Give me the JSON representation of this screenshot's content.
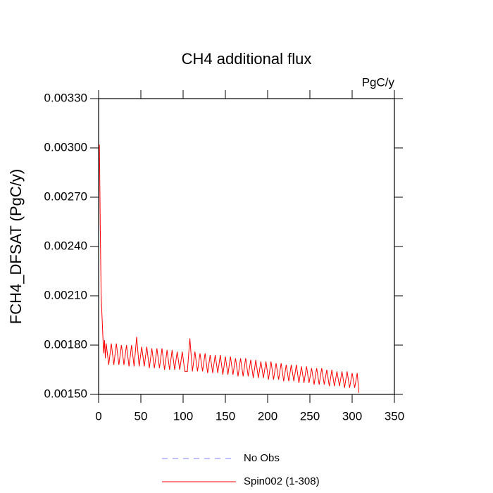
{
  "chart_data": {
    "type": "line",
    "title": "CH4 additional flux",
    "units_label": "PgC/y",
    "ylabel": "FCH4_DFSAT  (PgC/y)",
    "xlim": [
      0,
      350
    ],
    "xticks": [
      0,
      50,
      100,
      150,
      200,
      250,
      300,
      350
    ],
    "ylim": [
      0.0015,
      0.0033
    ],
    "yticks": [
      {
        "value": 0.0015,
        "label": "0.00150"
      },
      {
        "value": 0.0018,
        "label": "0.00180"
      },
      {
        "value": 0.0021,
        "label": "0.00210"
      },
      {
        "value": 0.0024,
        "label": "0.00240"
      },
      {
        "value": 0.0027,
        "label": "0.00270"
      },
      {
        "value": 0.003,
        "label": "0.00300"
      },
      {
        "value": 0.0033,
        "label": "0.00330"
      }
    ],
    "legend_only": [
      {
        "name": "No Obs",
        "color": "#8080ff",
        "dash": true
      }
    ],
    "x": [
      1,
      2,
      3,
      4,
      5,
      6,
      7,
      8,
      9,
      12,
      15,
      18,
      21,
      24,
      27,
      30,
      33,
      36,
      39,
      42,
      45,
      48,
      51,
      54,
      57,
      60,
      63,
      66,
      69,
      72,
      75,
      78,
      81,
      84,
      87,
      90,
      93,
      96,
      99,
      102,
      105,
      108,
      111,
      114,
      117,
      120,
      123,
      126,
      129,
      132,
      135,
      138,
      141,
      144,
      147,
      150,
      153,
      156,
      159,
      162,
      165,
      168,
      171,
      174,
      177,
      180,
      183,
      186,
      189,
      192,
      195,
      198,
      201,
      204,
      207,
      210,
      213,
      216,
      219,
      222,
      225,
      228,
      231,
      234,
      237,
      240,
      243,
      246,
      249,
      252,
      255,
      258,
      261,
      264,
      267,
      270,
      273,
      276,
      279,
      282,
      285,
      288,
      291,
      294,
      297,
      300,
      303,
      306,
      308
    ],
    "series": [
      {
        "name": "Spin002 (1-308)",
        "color": "#ff0000",
        "values": [
          0.00302,
          0.0025,
          0.00211,
          0.00198,
          0.00186,
          0.00175,
          0.00183,
          0.00172,
          0.00181,
          0.00168,
          0.00181,
          0.00168,
          0.00181,
          0.00168,
          0.0018,
          0.00168,
          0.0018,
          0.00167,
          0.0018,
          0.00167,
          0.00185,
          0.00167,
          0.00179,
          0.00167,
          0.00179,
          0.00166,
          0.00178,
          0.00166,
          0.00178,
          0.00166,
          0.00178,
          0.00165,
          0.00177,
          0.00165,
          0.00177,
          0.00165,
          0.00176,
          0.00165,
          0.00176,
          0.00164,
          0.00164,
          0.00184,
          0.00164,
          0.00176,
          0.00164,
          0.00175,
          0.00164,
          0.00175,
          0.00163,
          0.00174,
          0.00163,
          0.00174,
          0.00163,
          0.00174,
          0.00162,
          0.00173,
          0.00162,
          0.00173,
          0.00162,
          0.00172,
          0.00161,
          0.00172,
          0.00161,
          0.00172,
          0.00161,
          0.00171,
          0.0016,
          0.00171,
          0.0016,
          0.0017,
          0.0016,
          0.0017,
          0.00159,
          0.0017,
          0.00159,
          0.00169,
          0.00159,
          0.00169,
          0.00158,
          0.00168,
          0.00158,
          0.00168,
          0.00158,
          0.00168,
          0.00157,
          0.00167,
          0.00157,
          0.00167,
          0.00157,
          0.00166,
          0.00156,
          0.00166,
          0.00156,
          0.00166,
          0.00156,
          0.00165,
          0.00155,
          0.00165,
          0.00155,
          0.00164,
          0.00155,
          0.00164,
          0.00154,
          0.00164,
          0.00154,
          0.00163,
          0.00154,
          0.00163,
          0.00151
        ]
      }
    ]
  }
}
